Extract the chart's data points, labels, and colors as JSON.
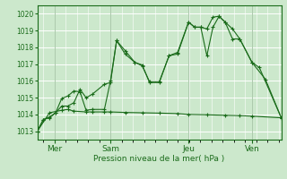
{
  "background_color": "#cce8cc",
  "grid_color": "#ffffff",
  "line_color": "#1a6b1a",
  "title": "Pression niveau de la mer( hPa )",
  "ylim": [
    1012.5,
    1020.5
  ],
  "yticks": [
    1013,
    1014,
    1015,
    1016,
    1017,
    1018,
    1019,
    1020
  ],
  "day_labels": [
    "Mer",
    "Sam",
    "Jeu",
    "Ven"
  ],
  "day_positions": [
    0.07,
    0.3,
    0.62,
    0.88
  ],
  "series1_x": [
    0,
    0.025,
    0.05,
    0.075,
    0.1,
    0.125,
    0.15,
    0.175,
    0.2,
    0.225,
    0.275,
    0.3,
    0.325,
    0.36,
    0.4,
    0.43,
    0.46,
    0.5,
    0.54,
    0.575,
    0.62,
    0.645,
    0.67,
    0.695,
    0.72,
    0.745,
    0.77,
    0.8,
    0.83,
    0.88,
    0.935,
    1.0
  ],
  "series1_y": [
    1013.0,
    1013.7,
    1013.8,
    1014.1,
    1014.5,
    1014.5,
    1014.7,
    1015.5,
    1015.0,
    1015.2,
    1015.8,
    1015.9,
    1018.4,
    1017.8,
    1017.1,
    1016.95,
    1015.9,
    1015.9,
    1017.5,
    1017.7,
    1019.5,
    1019.2,
    1019.2,
    1017.5,
    1019.2,
    1019.85,
    1019.5,
    1019.1,
    1018.5,
    1017.1,
    1016.1,
    1013.8
  ],
  "series2_x": [
    0,
    0.025,
    0.05,
    0.075,
    0.1,
    0.125,
    0.15,
    0.175,
    0.2,
    0.225,
    0.275,
    0.3,
    0.325,
    0.36,
    0.4,
    0.43,
    0.46,
    0.5,
    0.54,
    0.575,
    0.62,
    0.645,
    0.67,
    0.695,
    0.72,
    0.745,
    0.77,
    0.8,
    0.83,
    0.88,
    0.91,
    1.0
  ],
  "series2_y": [
    1013.0,
    1013.7,
    1013.85,
    1014.1,
    1014.95,
    1015.1,
    1015.4,
    1015.35,
    1014.25,
    1014.3,
    1014.3,
    1016.0,
    1018.4,
    1017.6,
    1017.1,
    1016.9,
    1015.95,
    1015.95,
    1017.5,
    1017.6,
    1019.5,
    1019.2,
    1019.2,
    1019.1,
    1019.8,
    1019.85,
    1019.5,
    1018.5,
    1018.5,
    1017.1,
    1016.8,
    1013.8
  ],
  "series3_x": [
    0,
    0.05,
    0.1,
    0.125,
    0.15,
    0.2,
    0.225,
    0.275,
    0.3,
    0.36,
    0.43,
    0.5,
    0.575,
    0.62,
    0.695,
    0.77,
    0.83,
    0.88,
    1.0
  ],
  "series3_y": [
    1013.0,
    1014.1,
    1014.25,
    1014.3,
    1014.2,
    1014.15,
    1014.15,
    1014.15,
    1014.15,
    1014.12,
    1014.1,
    1014.08,
    1014.05,
    1014.0,
    1013.98,
    1013.95,
    1013.93,
    1013.9,
    1013.8
  ]
}
